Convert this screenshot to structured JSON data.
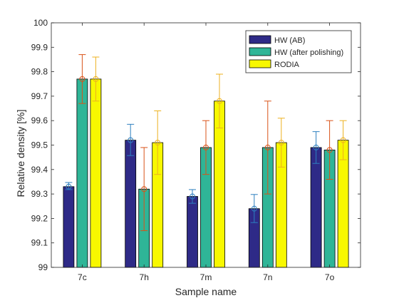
{
  "chart_data": {
    "type": "bar",
    "title": "",
    "xlabel": "Sample name",
    "ylabel": "Relative density [%]",
    "categories": [
      "7c",
      "7h",
      "7m",
      "7n",
      "7o"
    ],
    "ylim": [
      99,
      100
    ],
    "yticks": [
      "99",
      "99.1",
      "99.2",
      "99.3",
      "99.4",
      "99.5",
      "99.6",
      "99.7",
      "99.8",
      "99.9",
      "100"
    ],
    "grid": false,
    "legend_position": "top-right",
    "series": [
      {
        "name": "HW (AB)",
        "color": "#2e2a87",
        "error_color": "#2d7fbf",
        "values": [
          99.33,
          99.52,
          99.29,
          99.24,
          99.49
        ],
        "err_low": [
          99.318,
          99.457,
          99.262,
          99.183,
          99.425
        ],
        "err_high": [
          99.347,
          99.585,
          99.318,
          99.298,
          99.555
        ]
      },
      {
        "name": "HW (after polishing)",
        "color": "#2fb597",
        "error_color": "#d95318",
        "values": [
          99.77,
          99.32,
          99.49,
          99.49,
          99.48
        ],
        "err_low": [
          99.67,
          99.15,
          99.38,
          99.3,
          99.36
        ],
        "err_high": [
          99.87,
          99.49,
          99.6,
          99.68,
          99.6
        ]
      },
      {
        "name": "RODIA",
        "color": "#f8f800",
        "error_color": "#edb120",
        "values": [
          99.77,
          99.51,
          99.68,
          99.51,
          99.52
        ],
        "err_low": [
          99.68,
          99.38,
          99.57,
          99.41,
          99.44
        ],
        "err_high": [
          99.86,
          99.64,
          99.79,
          99.61,
          99.6
        ]
      }
    ]
  }
}
